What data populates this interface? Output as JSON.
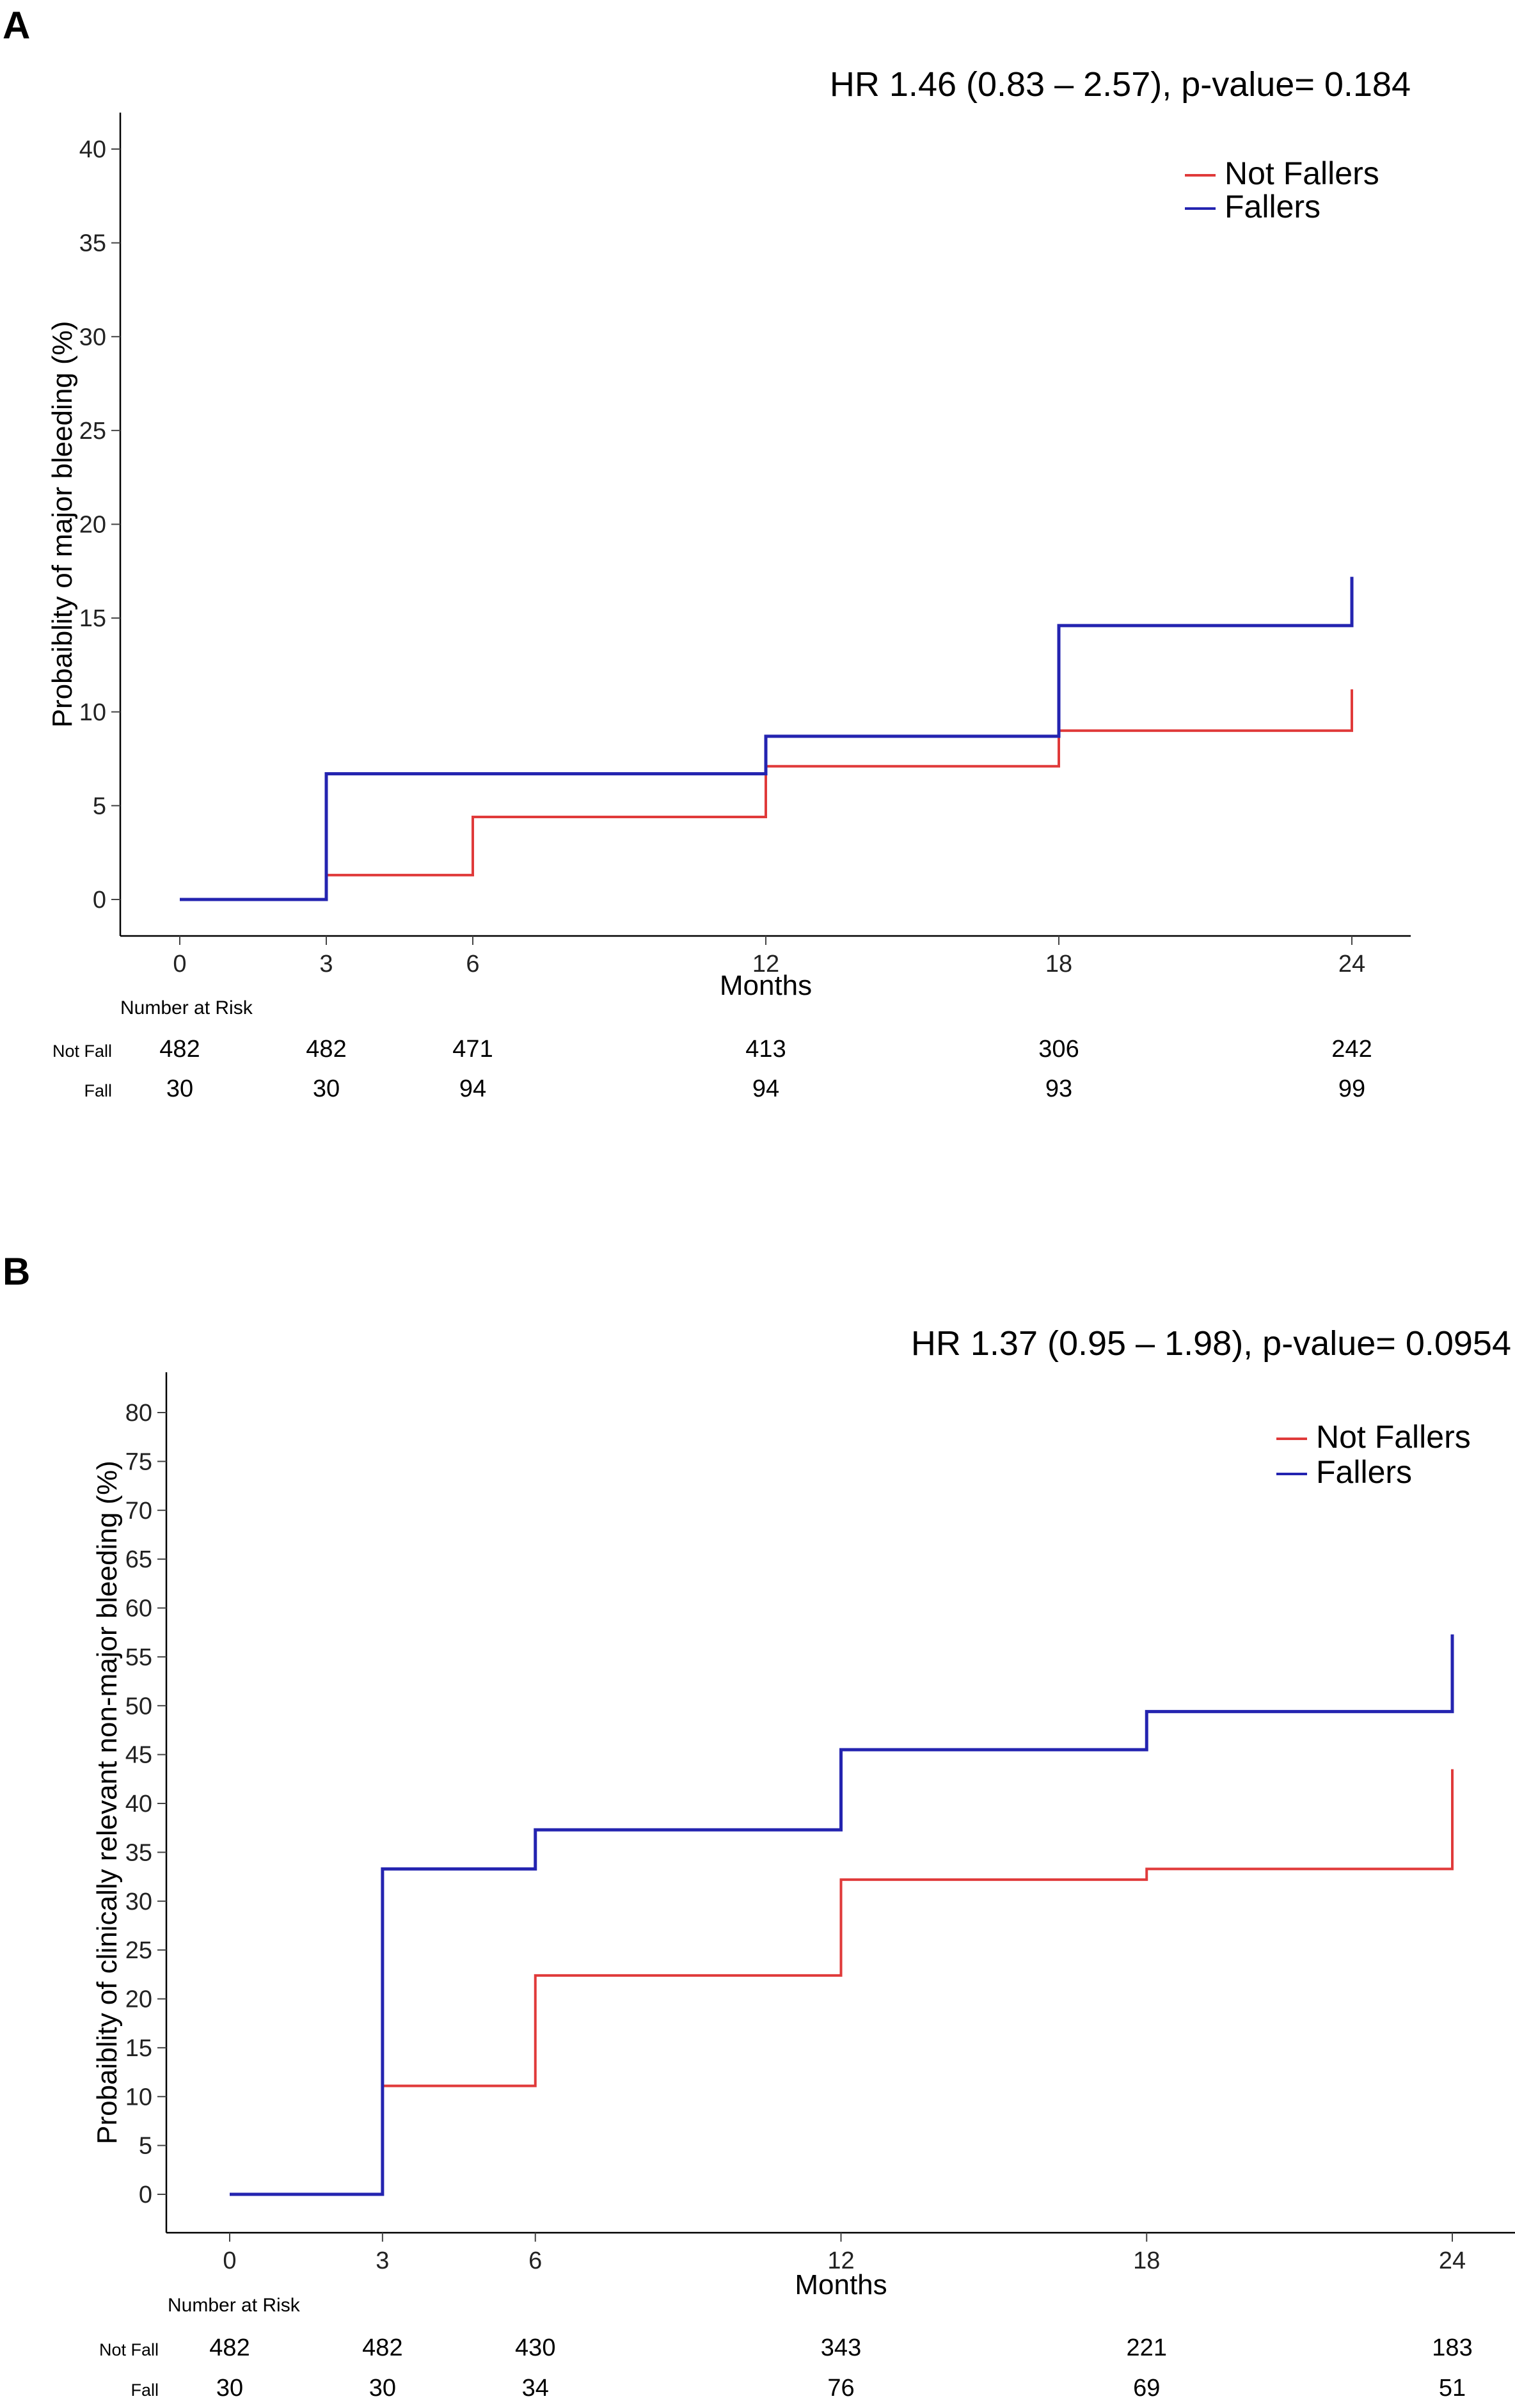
{
  "chart_data": [
    {
      "type": "line",
      "panel": "A",
      "title": "HR 1.46 (0.83 – 2.57), p-value= 0.184",
      "xlabel": "Months",
      "ylabel": "Probaiblity of major bleeding (%)",
      "xlim": [
        0,
        24
      ],
      "ylim": [
        0,
        40
      ],
      "x_ticks": [
        0,
        3,
        6,
        12,
        18,
        24
      ],
      "y_ticks": [
        0,
        5,
        10,
        15,
        20,
        25,
        30,
        35,
        40
      ],
      "grid": false,
      "legend_position": "top-right",
      "series": [
        {
          "name": "Not Fallers",
          "color": "#e03a3a",
          "step_x": [
            0,
            3,
            6,
            12,
            18,
            24
          ],
          "step_y": [
            0,
            1.3,
            4.4,
            7.1,
            9.0,
            11.2
          ]
        },
        {
          "name": "Fallers",
          "color": "#2424b0",
          "step_x": [
            0,
            3,
            12,
            18,
            24
          ],
          "step_y": [
            0,
            6.7,
            8.7,
            14.6,
            17.2
          ]
        }
      ],
      "risk_table": {
        "header": "Number at Risk",
        "times": [
          0,
          3,
          6,
          12,
          18,
          24
        ],
        "rows": [
          {
            "label": "Not Fall",
            "values": [
              "482",
              "482",
              "471",
              "413",
              "306",
              "242"
            ]
          },
          {
            "label": "Fall",
            "values": [
              "30",
              "30",
              "94",
              "94",
              "93",
              "99"
            ]
          }
        ]
      }
    },
    {
      "type": "line",
      "panel": "B",
      "title": "HR 1.37 (0.95 – 1.98), p-value= 0.0954",
      "xlabel": "Months",
      "ylabel": "Probaiblity of clinically relevant non-major bleeding (%)",
      "xlim": [
        0,
        24
      ],
      "ylim": [
        0,
        80
      ],
      "x_ticks": [
        0,
        3,
        6,
        12,
        18,
        24
      ],
      "y_ticks": [
        0,
        5,
        10,
        15,
        20,
        25,
        30,
        35,
        40,
        45,
        50,
        55,
        60,
        65,
        70,
        75,
        80
      ],
      "grid": false,
      "legend_position": "top-right",
      "series": [
        {
          "name": "Not Fallers",
          "color": "#e03a3a",
          "step_x": [
            0,
            3,
            6,
            12,
            18,
            24
          ],
          "step_y": [
            0,
            11.1,
            22.4,
            32.2,
            33.3,
            43.5
          ]
        },
        {
          "name": "Fallers",
          "color": "#2424b0",
          "step_x": [
            0,
            3,
            6,
            12,
            18,
            24
          ],
          "step_y": [
            0,
            33.3,
            37.3,
            45.5,
            49.4,
            57.3
          ]
        }
      ],
      "risk_table": {
        "header": "Number at Risk",
        "times": [
          0,
          3,
          6,
          12,
          18,
          24
        ],
        "rows": [
          {
            "label": "Not Fall",
            "values": [
              "482",
              "482",
              "430",
              "343",
              "221",
              "183"
            ]
          },
          {
            "label": "Fall",
            "values": [
              "30",
              "30",
              "34",
              "76",
              "69",
              "51"
            ]
          }
        ]
      }
    }
  ]
}
